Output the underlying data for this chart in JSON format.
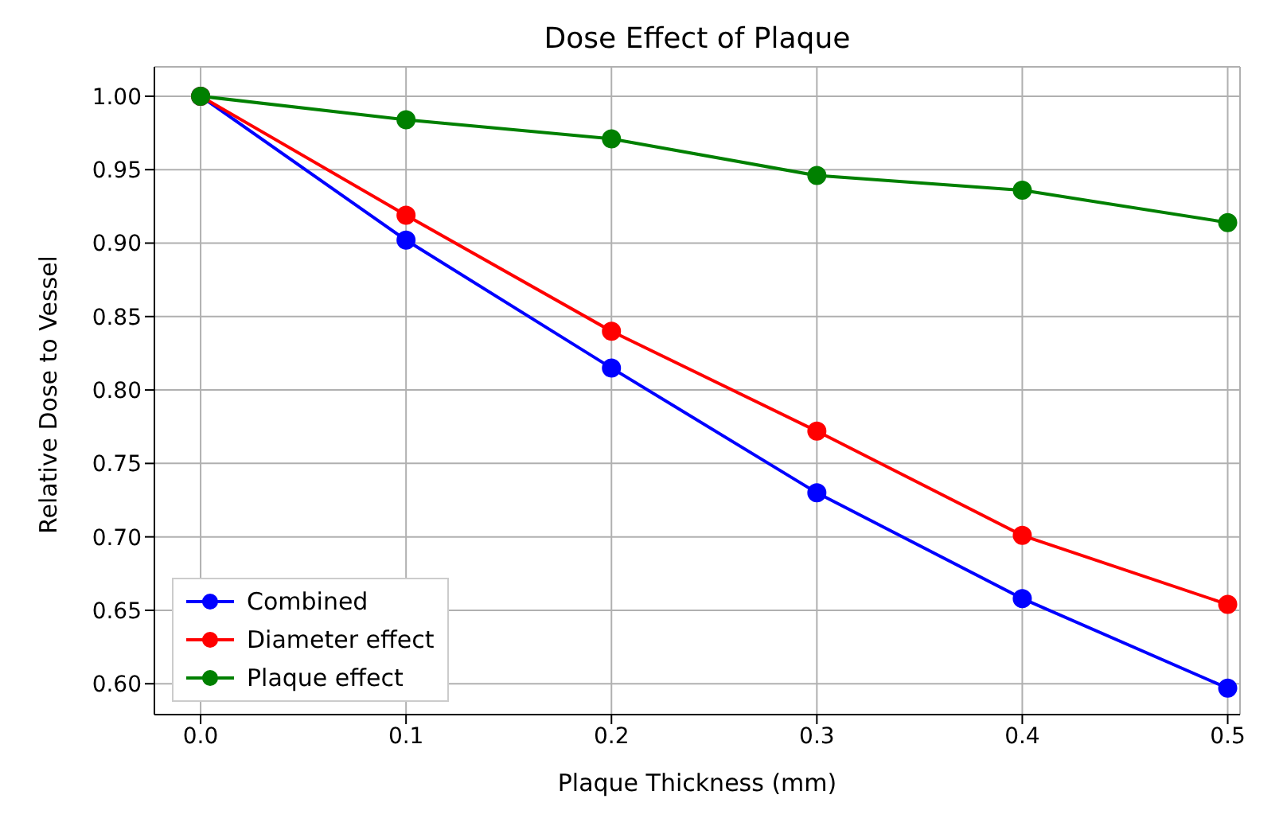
{
  "chart_data": {
    "type": "line",
    "title": "Dose Effect of Plaque",
    "xlabel": "Plaque Thickness (mm)",
    "ylabel": "Relative Dose to Vessel",
    "x": [
      0.0,
      0.1,
      0.2,
      0.3,
      0.4,
      0.5
    ],
    "series": [
      {
        "name": "Combined",
        "color": "#0000ff",
        "values": [
          1.0,
          0.902,
          0.815,
          0.73,
          0.658,
          0.597
        ]
      },
      {
        "name": "Diameter effect",
        "color": "#ff0000",
        "values": [
          1.0,
          0.919,
          0.84,
          0.772,
          0.701,
          0.654
        ]
      },
      {
        "name": "Plaque effect",
        "color": "#008000",
        "values": [
          1.0,
          0.984,
          0.971,
          0.946,
          0.936,
          0.914
        ]
      }
    ],
    "xlim": [
      -0.0225,
      0.506
    ],
    "xticks": [
      {
        "value": 0,
        "label": "0.0"
      },
      0.1,
      0.2,
      0.3,
      0.4,
      0.5
    ],
    "ylim": [
      0.579,
      1.02
    ],
    "yticks": [
      {
        "value": 0.6,
        "label": "0.60"
      },
      0.65,
      {
        "value": 0.7,
        "label": "0.70"
      },
      0.75,
      {
        "value": 0.8,
        "label": "0.80"
      },
      0.85,
      {
        "value": 0.9,
        "label": "0.90"
      },
      0.95,
      {
        "value": 1,
        "label": "1.00"
      }
    ],
    "grid": true,
    "legend": "bottom left",
    "marker": "circle",
    "line_style": "solid"
  }
}
